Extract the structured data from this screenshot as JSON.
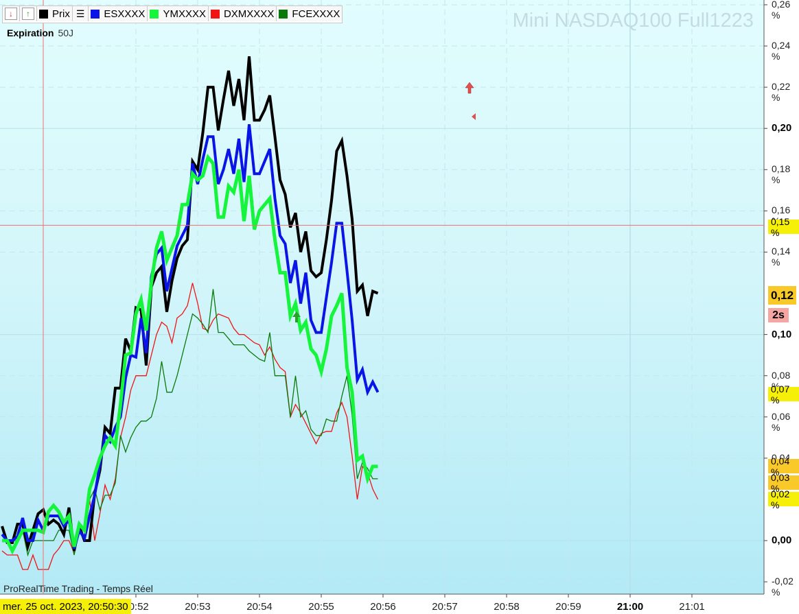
{
  "toolbar": {
    "buttons": [
      {
        "label": "Prix",
        "color": "#000000"
      },
      {
        "label": "ESXXXX",
        "color": "#0a14e6"
      },
      {
        "label": "YMXXXX",
        "color": "#14f53c"
      },
      {
        "label": "DXMXXXX",
        "color": "#f01414"
      },
      {
        "label": "FCEXXXX",
        "color": "#0a7a0a"
      }
    ]
  },
  "header": {
    "title": "Mini NASDAQ100 Full1223",
    "expiration_label": "Expiration",
    "expiration_value": "50J"
  },
  "footer": {
    "source_note": "ProRealTime Trading - Temps Réel"
  },
  "crosshair": {
    "date_label": "mer. 25 oct. 2023, 20:50:30",
    "x": "20:50:30",
    "y": 0.153
  },
  "tags": {
    "crosshair_value": "0,15 %",
    "current_value": "0,12",
    "timer": "2s",
    "es": "0,07 %",
    "ym": "0,04 %",
    "fce": "0,03 %",
    "dxm": "0,02 %"
  },
  "chart_data": {
    "type": "line",
    "title": "Mini NASDAQ100 Full1223",
    "xlabel": "",
    "ylabel": "",
    "ylim": [
      -0.02,
      0.26
    ],
    "y_ticks": [
      {
        "v": 0.26,
        "t": "0,26 %"
      },
      {
        "v": 0.24,
        "t": "0,24 %"
      },
      {
        "v": 0.22,
        "t": "0,22 %"
      },
      {
        "v": 0.2,
        "t": "0,20",
        "bold": true
      },
      {
        "v": 0.18,
        "t": "0,18 %"
      },
      {
        "v": 0.16,
        "t": "0,16 %"
      },
      {
        "v": 0.14,
        "t": "0,14 %"
      },
      {
        "v": 0.1,
        "t": "0,10",
        "bold": true
      },
      {
        "v": 0.08,
        "t": "0,08 %"
      },
      {
        "v": 0.06,
        "t": "0,06 %"
      },
      {
        "v": 0.04,
        "t": "0,04 %"
      },
      {
        "v": 0.0,
        "t": "0,00",
        "bold": true
      },
      {
        "v": -0.02,
        "t": "-0,02 %"
      }
    ],
    "x_ticks": [
      {
        "t": "20:52"
      },
      {
        "t": "20:53"
      },
      {
        "t": "20:54"
      },
      {
        "t": "20:55"
      },
      {
        "t": "20:56"
      },
      {
        "t": "20:57"
      },
      {
        "t": "20:58"
      },
      {
        "t": "20:59"
      },
      {
        "t": "21:00",
        "bold": true
      },
      {
        "t": "21:01"
      }
    ],
    "x_start": "20:49:50",
    "x_step_seconds": 5,
    "grid": true,
    "series": [
      {
        "name": "Prix",
        "color": "#000000",
        "width": 4,
        "values": [
          0.007,
          -0.001,
          -0.001,
          0.008,
          0.008,
          -0.003,
          0.005,
          0.013,
          0.015,
          0.008,
          0.01,
          0.008,
          0.003,
          0.016,
          -0.005,
          0.007,
          0.0,
          0.0,
          0.023,
          0.034,
          0.055,
          0.052,
          0.074,
          0.074,
          0.098,
          0.092,
          0.113,
          0.112,
          0.085,
          0.123,
          0.13,
          0.133,
          0.111,
          0.126,
          0.137,
          0.143,
          0.146,
          0.184,
          0.18,
          0.198,
          0.22,
          0.22,
          0.199,
          0.214,
          0.228,
          0.211,
          0.224,
          0.204,
          0.235,
          0.204,
          0.204,
          0.209,
          0.216,
          0.196,
          0.175,
          0.168,
          0.152,
          0.159,
          0.14,
          0.15,
          0.131,
          0.128,
          0.13,
          0.146,
          0.165,
          0.189,
          0.194,
          0.177,
          0.156,
          0.121,
          0.124,
          0.109,
          0.121,
          0.12
        ]
      },
      {
        "name": "ESXXXX",
        "color": "#0a14e6",
        "width": 4,
        "values": [
          0.003,
          0.0,
          0.0,
          0.002,
          0.011,
          0.0,
          0.0,
          0.01,
          0.005,
          0.012,
          0.012,
          0.012,
          0.007,
          0.01,
          -0.004,
          0.005,
          0.001,
          0.012,
          0.022,
          0.037,
          0.051,
          0.048,
          0.055,
          0.06,
          0.079,
          0.09,
          0.089,
          0.108,
          0.091,
          0.128,
          0.139,
          0.142,
          0.121,
          0.132,
          0.143,
          0.148,
          0.153,
          0.183,
          0.173,
          0.185,
          0.196,
          0.196,
          0.173,
          0.18,
          0.19,
          0.178,
          0.195,
          0.174,
          0.202,
          0.178,
          0.178,
          0.184,
          0.19,
          0.166,
          0.148,
          0.144,
          0.125,
          0.136,
          0.115,
          0.13,
          0.107,
          0.101,
          0.101,
          0.118,
          0.135,
          0.154,
          0.154,
          0.131,
          0.107,
          0.078,
          0.083,
          0.072,
          0.077,
          0.072
        ]
      },
      {
        "name": "YMXXXX",
        "color": "#14f53c",
        "width": 5,
        "values": [
          0.0,
          0.0,
          -0.005,
          0.0,
          0.005,
          0.005,
          0.005,
          0.005,
          0.004,
          0.014,
          0.017,
          0.014,
          0.009,
          0.012,
          -0.003,
          0.008,
          0.005,
          0.025,
          0.032,
          0.04,
          0.046,
          0.05,
          0.046,
          0.066,
          0.09,
          0.091,
          0.11,
          0.117,
          0.102,
          0.125,
          0.142,
          0.15,
          0.136,
          0.142,
          0.148,
          0.163,
          0.163,
          0.178,
          0.175,
          0.177,
          0.186,
          0.183,
          0.157,
          0.157,
          0.172,
          0.169,
          0.18,
          0.155,
          0.177,
          0.151,
          0.16,
          0.163,
          0.166,
          0.146,
          0.13,
          0.13,
          0.109,
          0.115,
          0.102,
          0.106,
          0.093,
          0.09,
          0.082,
          0.093,
          0.109,
          0.114,
          0.12,
          0.084,
          0.072,
          0.039,
          0.041,
          0.03,
          0.036,
          0.036
        ]
      },
      {
        "name": "DXMXXXX",
        "color": "#f01414",
        "width": 1.3,
        "values": [
          -0.005,
          -0.007,
          -0.007,
          -0.007,
          -0.014,
          -0.014,
          -0.007,
          -0.014,
          -0.014,
          -0.014,
          -0.007,
          -0.004,
          0.0,
          0.0,
          -0.006,
          0.007,
          0.0,
          0.02,
          0.0,
          0.013,
          0.027,
          0.02,
          0.03,
          0.05,
          0.06,
          0.073,
          0.08,
          0.08,
          0.08,
          0.09,
          0.1,
          0.106,
          0.104,
          0.096,
          0.108,
          0.11,
          0.114,
          0.125,
          0.115,
          0.103,
          0.102,
          0.107,
          0.11,
          0.109,
          0.108,
          0.103,
          0.1,
          0.1,
          0.098,
          0.096,
          0.095,
          0.09,
          0.094,
          0.088,
          0.084,
          0.082,
          0.06,
          0.066,
          0.062,
          0.057,
          0.052,
          0.047,
          0.052,
          0.053,
          0.053,
          0.062,
          0.067,
          0.06,
          0.041,
          0.02,
          0.036,
          0.033,
          0.025,
          0.02
        ]
      },
      {
        "name": "FCEXXXX",
        "color": "#0a7a0a",
        "width": 1.3,
        "values": [
          0.0,
          0.0,
          0.0,
          0.0,
          0.005,
          -0.007,
          0.0,
          0.0,
          0.0,
          0.0,
          0.0,
          0.005,
          0.005,
          0.005,
          -0.007,
          0.005,
          0.0,
          0.02,
          0.025,
          0.015,
          0.022,
          0.022,
          0.028,
          0.051,
          0.043,
          0.05,
          0.055,
          0.058,
          0.058,
          0.06,
          0.069,
          0.087,
          0.072,
          0.072,
          0.08,
          0.09,
          0.1,
          0.11,
          0.108,
          0.105,
          0.101,
          0.122,
          0.101,
          0.101,
          0.098,
          0.095,
          0.095,
          0.095,
          0.092,
          0.09,
          0.088,
          0.087,
          0.101,
          0.08,
          0.08,
          0.08,
          0.06,
          0.08,
          0.06,
          0.063,
          0.054,
          0.051,
          0.051,
          0.059,
          0.058,
          0.058,
          0.07,
          0.08,
          0.061,
          0.03,
          0.038,
          0.035,
          0.03,
          0.03
        ]
      }
    ]
  }
}
